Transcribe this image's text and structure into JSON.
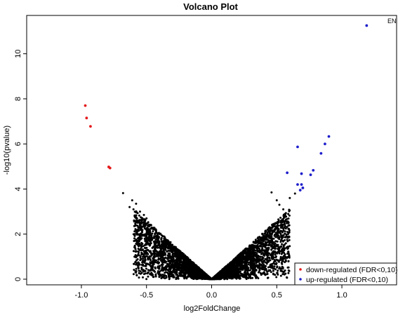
{
  "chart_data": {
    "type": "scatter",
    "title": "Volcano Plot",
    "xlabel": "log2FoldChange",
    "ylabel": "-log10(pvalue)",
    "xlim": [
      -1.42,
      1.42
    ],
    "ylim": [
      -0.25,
      11.7
    ],
    "x_ticks": [
      "-1.0",
      "-0.5",
      "0.0",
      "0.5",
      "1.0"
    ],
    "y_ticks": [
      "0",
      "2",
      "4",
      "6",
      "8",
      "10"
    ],
    "grid": false,
    "legend_position": "bottom-right",
    "colors": {
      "background_points": "#000000",
      "down": "#e41a1c",
      "up": "#1f1fcc"
    },
    "annotation": {
      "text": "EN",
      "x": 1.35,
      "y": 11.35
    },
    "legend": [
      {
        "label": "down-regulated (FDR<0,10)",
        "color": "#e41a1c"
      },
      {
        "label": "up-regulated (FDR<0,10)",
        "color": "#1f1fcc"
      }
    ],
    "series": [
      {
        "name": "down-regulated (FDR<0,10)",
        "color": "#e41a1c",
        "x": [
          -0.97,
          -0.96,
          -0.93,
          -0.79,
          -0.78
        ],
        "y": [
          7.7,
          7.15,
          6.78,
          4.98,
          4.93
        ]
      },
      {
        "name": "up-regulated (FDR<0,10)",
        "color": "#1f1fcc",
        "x": [
          1.19,
          0.9,
          0.87,
          0.84,
          0.66,
          0.78,
          0.76,
          0.58,
          0.69,
          0.69,
          0.66,
          0.68,
          0.7
        ],
        "y": [
          11.25,
          6.33,
          6.0,
          5.58,
          5.87,
          4.83,
          4.63,
          4.72,
          4.68,
          4.2,
          4.2,
          3.95,
          4.05
        ]
      },
      {
        "name": "",
        "color": "#000000",
        "x": [
          -0.68,
          -0.61,
          -0.58,
          -0.63,
          -0.6,
          -0.55,
          -0.52,
          -0.5,
          0.46,
          0.5,
          0.52,
          0.55,
          0.6,
          0.64
        ],
        "y": [
          3.82,
          3.5,
          3.35,
          3.2,
          3.1,
          3.0,
          2.85,
          2.7,
          3.85,
          3.5,
          3.3,
          3.1,
          3.6,
          3.8
        ]
      }
    ]
  }
}
